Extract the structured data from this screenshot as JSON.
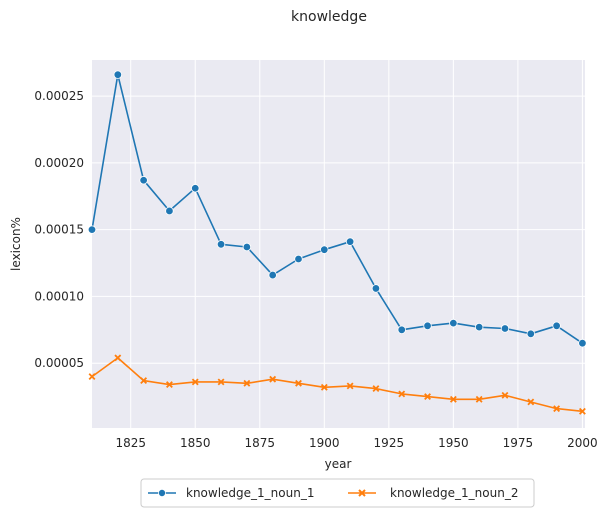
{
  "chart_data": {
    "type": "line",
    "title": "knowledge",
    "xlabel": "year",
    "ylabel": "lexicon%",
    "xlim": [
      1810,
      2001
    ],
    "ylim": [
      1.5e-06,
      0.000277
    ],
    "x_ticks": [
      1825,
      1850,
      1875,
      1900,
      1925,
      1950,
      1975,
      2000
    ],
    "x_tick_labels": [
      "1825",
      "1850",
      "1875",
      "1900",
      "1925",
      "1950",
      "1975",
      "2000"
    ],
    "y_ticks": [
      5e-05,
      0.0001,
      0.00015,
      0.0002,
      0.00025
    ],
    "y_tick_labels": [
      "0.00005",
      "0.00010",
      "0.00015",
      "0.00020",
      "0.00025"
    ],
    "grid": true,
    "legend_position": "bottom-center",
    "x": [
      1810,
      1820,
      1830,
      1840,
      1850,
      1860,
      1870,
      1880,
      1890,
      1900,
      1910,
      1920,
      1930,
      1940,
      1950,
      1960,
      1970,
      1980,
      1990,
      2000
    ],
    "series": [
      {
        "name": "knowledge_1_noun_1",
        "color": "#1f77b4",
        "marker": "circle",
        "values": [
          0.00015,
          0.000266,
          0.000187,
          0.000164,
          0.000181,
          0.000139,
          0.000137,
          0.000116,
          0.000128,
          0.000135,
          0.000141,
          0.000106,
          7.5e-05,
          7.8e-05,
          8e-05,
          7.7e-05,
          7.6e-05,
          7.2e-05,
          7.8e-05,
          6.5e-05
        ]
      },
      {
        "name": "knowledge_1_noun_2",
        "color": "#ff7f0e",
        "marker": "x",
        "values": [
          4e-05,
          5.4e-05,
          3.7e-05,
          3.4e-05,
          3.6e-05,
          3.6e-05,
          3.5e-05,
          3.8e-05,
          3.5e-05,
          3.2e-05,
          3.3e-05,
          3.1e-05,
          2.7e-05,
          2.5e-05,
          2.3e-05,
          2.3e-05,
          2.6e-05,
          2.1e-05,
          1.6e-05,
          1.4e-05
        ]
      }
    ]
  }
}
